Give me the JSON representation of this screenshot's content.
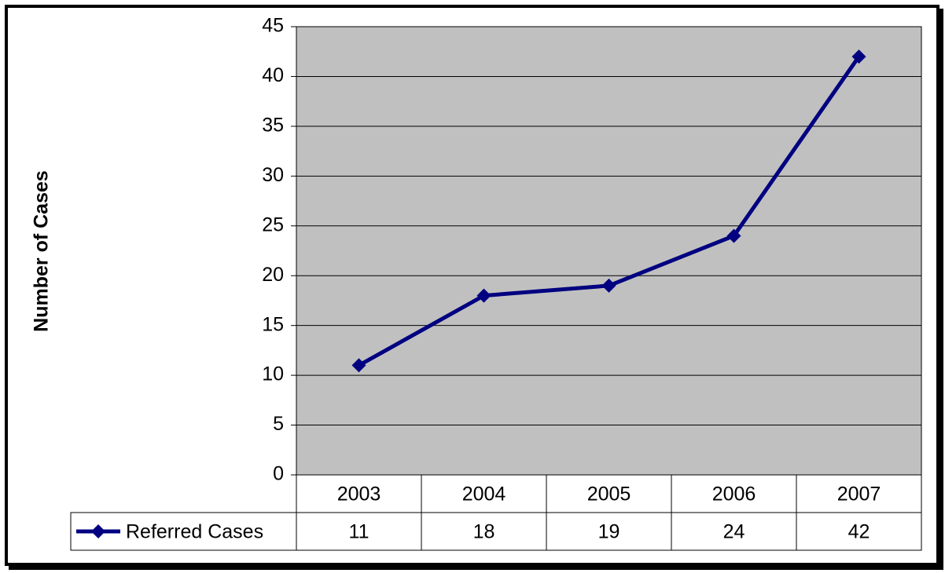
{
  "chart_data": {
    "type": "line",
    "title": "",
    "xlabel": "",
    "ylabel": "Number of Cases",
    "categories": [
      "2003",
      "2004",
      "2005",
      "2006",
      "2007"
    ],
    "ylim": [
      0,
      45
    ],
    "yticks": [
      0,
      5,
      10,
      15,
      20,
      25,
      30,
      35,
      40,
      45
    ],
    "grid": true,
    "legend": "data-table-left",
    "colors": {
      "plot_background": "#c0c0c0",
      "series": "#000080",
      "gridline": "#000000"
    },
    "series": [
      {
        "name": "Referred Cases",
        "marker": "diamond",
        "values": [
          11,
          18,
          19,
          24,
          42
        ]
      }
    ]
  }
}
